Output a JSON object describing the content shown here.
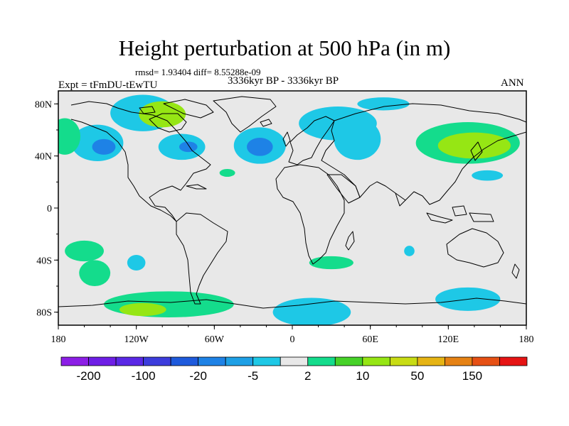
{
  "title": "Height perturbation at 500 hPa (in m)",
  "stats": "rmsd= 1.93404 diff= 8.55288e-09",
  "experiment": "Expt = tFmDU-tEwTU",
  "period": "3336kyr BP - 3336kyr BP",
  "season": "ANN",
  "map": {
    "background_color": "#e8e8e8",
    "x_ticks": [
      {
        "value": -180,
        "label": "180"
      },
      {
        "value": -120,
        "label": "120W"
      },
      {
        "value": -60,
        "label": "60W"
      },
      {
        "value": 0,
        "label": "0"
      },
      {
        "value": 60,
        "label": "60E"
      },
      {
        "value": 120,
        "label": "120E"
      },
      {
        "value": 180,
        "label": "180"
      }
    ],
    "y_ticks": [
      {
        "value": 80,
        "label": "80N"
      },
      {
        "value": 40,
        "label": "40N"
      },
      {
        "value": 0,
        "label": "0"
      },
      {
        "value": -40,
        "label": "40S"
      },
      {
        "value": -80,
        "label": "80S"
      }
    ],
    "lon_range": [
      -180,
      180
    ],
    "lat_range": [
      -90,
      90
    ]
  },
  "colorbar": {
    "colors": [
      "#8c1ee6",
      "#6e1ee6",
      "#5a28e6",
      "#3c3cdc",
      "#1e5adc",
      "#1e82e6",
      "#1ea0e6",
      "#1ec8e6",
      "#e8e8e8",
      "#14dc8c",
      "#46d228",
      "#96e614",
      "#c8dc14",
      "#e6b414",
      "#e68214",
      "#e65014",
      "#e61414"
    ],
    "labels": [
      {
        "boundary": 1,
        "label": "-200"
      },
      {
        "boundary": 3,
        "label": "-100"
      },
      {
        "boundary": 5,
        "label": "-20"
      },
      {
        "boundary": 7,
        "label": "-5"
      },
      {
        "boundary": 9,
        "label": "2"
      },
      {
        "boundary": 11,
        "label": "10"
      },
      {
        "boundary": 13,
        "label": "50"
      },
      {
        "boundary": 15,
        "label": "150"
      }
    ]
  },
  "anomaly_patches": [
    {
      "lon": -150,
      "lat": 50,
      "rlon": 20,
      "rlat": 14,
      "level": "-5"
    },
    {
      "lon": -145,
      "lat": 47,
      "rlon": 9,
      "rlat": 6,
      "level": "-20"
    },
    {
      "lon": -115,
      "lat": 73,
      "rlon": 25,
      "rlat": 14,
      "level": "-5"
    },
    {
      "lon": -100,
      "lat": 72,
      "rlon": 18,
      "rlat": 10,
      "level": "10"
    },
    {
      "lon": -85,
      "lat": 47,
      "rlon": 18,
      "rlat": 10,
      "level": "-5"
    },
    {
      "lon": -80,
      "lat": 47,
      "rlon": 7,
      "rlat": 4,
      "level": "-20"
    },
    {
      "lon": -25,
      "lat": 48,
      "rlon": 20,
      "rlat": 14,
      "level": "-5"
    },
    {
      "lon": -25,
      "lat": 47,
      "rlon": 10,
      "rlat": 7,
      "level": "-20"
    },
    {
      "lon": -50,
      "lat": 27,
      "rlon": 6,
      "rlat": 3,
      "level": "2"
    },
    {
      "lon": 35,
      "lat": 65,
      "rlon": 30,
      "rlat": 13,
      "level": "-5"
    },
    {
      "lon": 50,
      "lat": 53,
      "rlon": 18,
      "rlat": 16,
      "level": "-5"
    },
    {
      "lon": 70,
      "lat": 80,
      "rlon": 20,
      "rlat": 5,
      "level": "-5"
    },
    {
      "lon": 135,
      "lat": 50,
      "rlon": 40,
      "rlat": 16,
      "level": "2"
    },
    {
      "lon": 140,
      "lat": 48,
      "rlon": 28,
      "rlat": 10,
      "level": "10"
    },
    {
      "lon": 150,
      "lat": 25,
      "rlon": 12,
      "rlat": 4,
      "level": "-5"
    },
    {
      "lon": -175,
      "lat": 55,
      "rlon": 12,
      "rlat": 14,
      "level": "2"
    },
    {
      "lon": -160,
      "lat": -33,
      "rlon": 15,
      "rlat": 8,
      "level": "2"
    },
    {
      "lon": -152,
      "lat": -50,
      "rlon": 12,
      "rlat": 10,
      "level": "2"
    },
    {
      "lon": -120,
      "lat": -42,
      "rlon": 7,
      "rlat": 6,
      "level": "-5"
    },
    {
      "lon": 30,
      "lat": -42,
      "rlon": 17,
      "rlat": 5,
      "level": "2"
    },
    {
      "lon": 90,
      "lat": -33,
      "rlon": 4,
      "rlat": 4,
      "level": "-5"
    },
    {
      "lon": -95,
      "lat": -74,
      "rlon": 50,
      "rlat": 10,
      "level": "2"
    },
    {
      "lon": -115,
      "lat": -78,
      "rlon": 18,
      "rlat": 5,
      "level": "10"
    },
    {
      "lon": 15,
      "lat": -80,
      "rlon": 30,
      "rlat": 11,
      "level": "-5"
    },
    {
      "lon": 135,
      "lat": -70,
      "rlon": 25,
      "rlat": 9,
      "level": "-5"
    }
  ]
}
